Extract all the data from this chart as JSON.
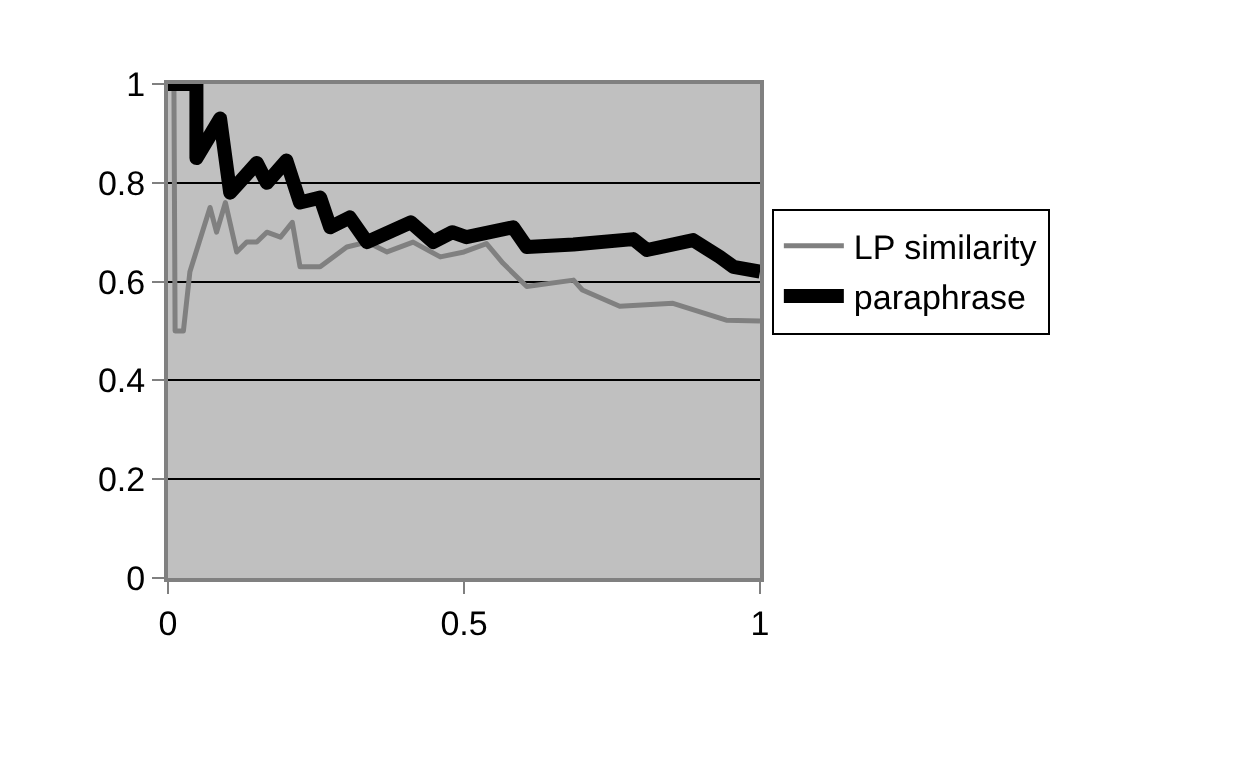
{
  "chart_data": {
    "type": "line",
    "xlim": [
      0,
      1
    ],
    "xticks": [
      0,
      0.5,
      1
    ],
    "ylim": [
      0,
      1
    ],
    "yticks": [
      0,
      0.2,
      0.4,
      0.6,
      0.8,
      1
    ],
    "grid": "y",
    "legend": "right",
    "marker": "none",
    "line_style": "solid",
    "series": [
      {
        "name": "LP similarity",
        "color": "#808080",
        "x": [
          0,
          0.01,
          0.012,
          0.026,
          0.037,
          0.071,
          0.082,
          0.097,
          0.116,
          0.133,
          0.15,
          0.167,
          0.19,
          0.21,
          0.223,
          0.257,
          0.302,
          0.336,
          0.37,
          0.414,
          0.46,
          0.5,
          0.538,
          0.566,
          0.606,
          0.685,
          0.7,
          0.763,
          0.853,
          0.943,
          1
        ],
        "values": [
          1,
          1,
          0.5,
          0.5,
          0.62,
          0.75,
          0.7,
          0.76,
          0.66,
          0.68,
          0.68,
          0.7,
          0.69,
          0.72,
          0.63,
          0.63,
          0.67,
          0.68,
          0.66,
          0.68,
          0.65,
          0.66,
          0.677,
          0.637,
          0.59,
          0.603,
          0.583,
          0.55,
          0.556,
          0.522,
          0.52
        ]
      },
      {
        "name": "paraphrase",
        "color": "#000000",
        "x": [
          0,
          0.048,
          0.048,
          0.088,
          0.105,
          0.15,
          0.167,
          0.2,
          0.223,
          0.257,
          0.274,
          0.307,
          0.336,
          0.41,
          0.448,
          0.48,
          0.504,
          0.583,
          0.606,
          0.685,
          0.786,
          0.809,
          0.887,
          0.932,
          0.955,
          1
        ],
        "values": [
          1,
          1,
          0.85,
          0.93,
          0.78,
          0.84,
          0.8,
          0.845,
          0.76,
          0.77,
          0.71,
          0.73,
          0.68,
          0.72,
          0.68,
          0.7,
          0.69,
          0.71,
          0.67,
          0.675,
          0.686,
          0.664,
          0.684,
          0.65,
          0.63,
          0.62
        ]
      }
    ]
  }
}
